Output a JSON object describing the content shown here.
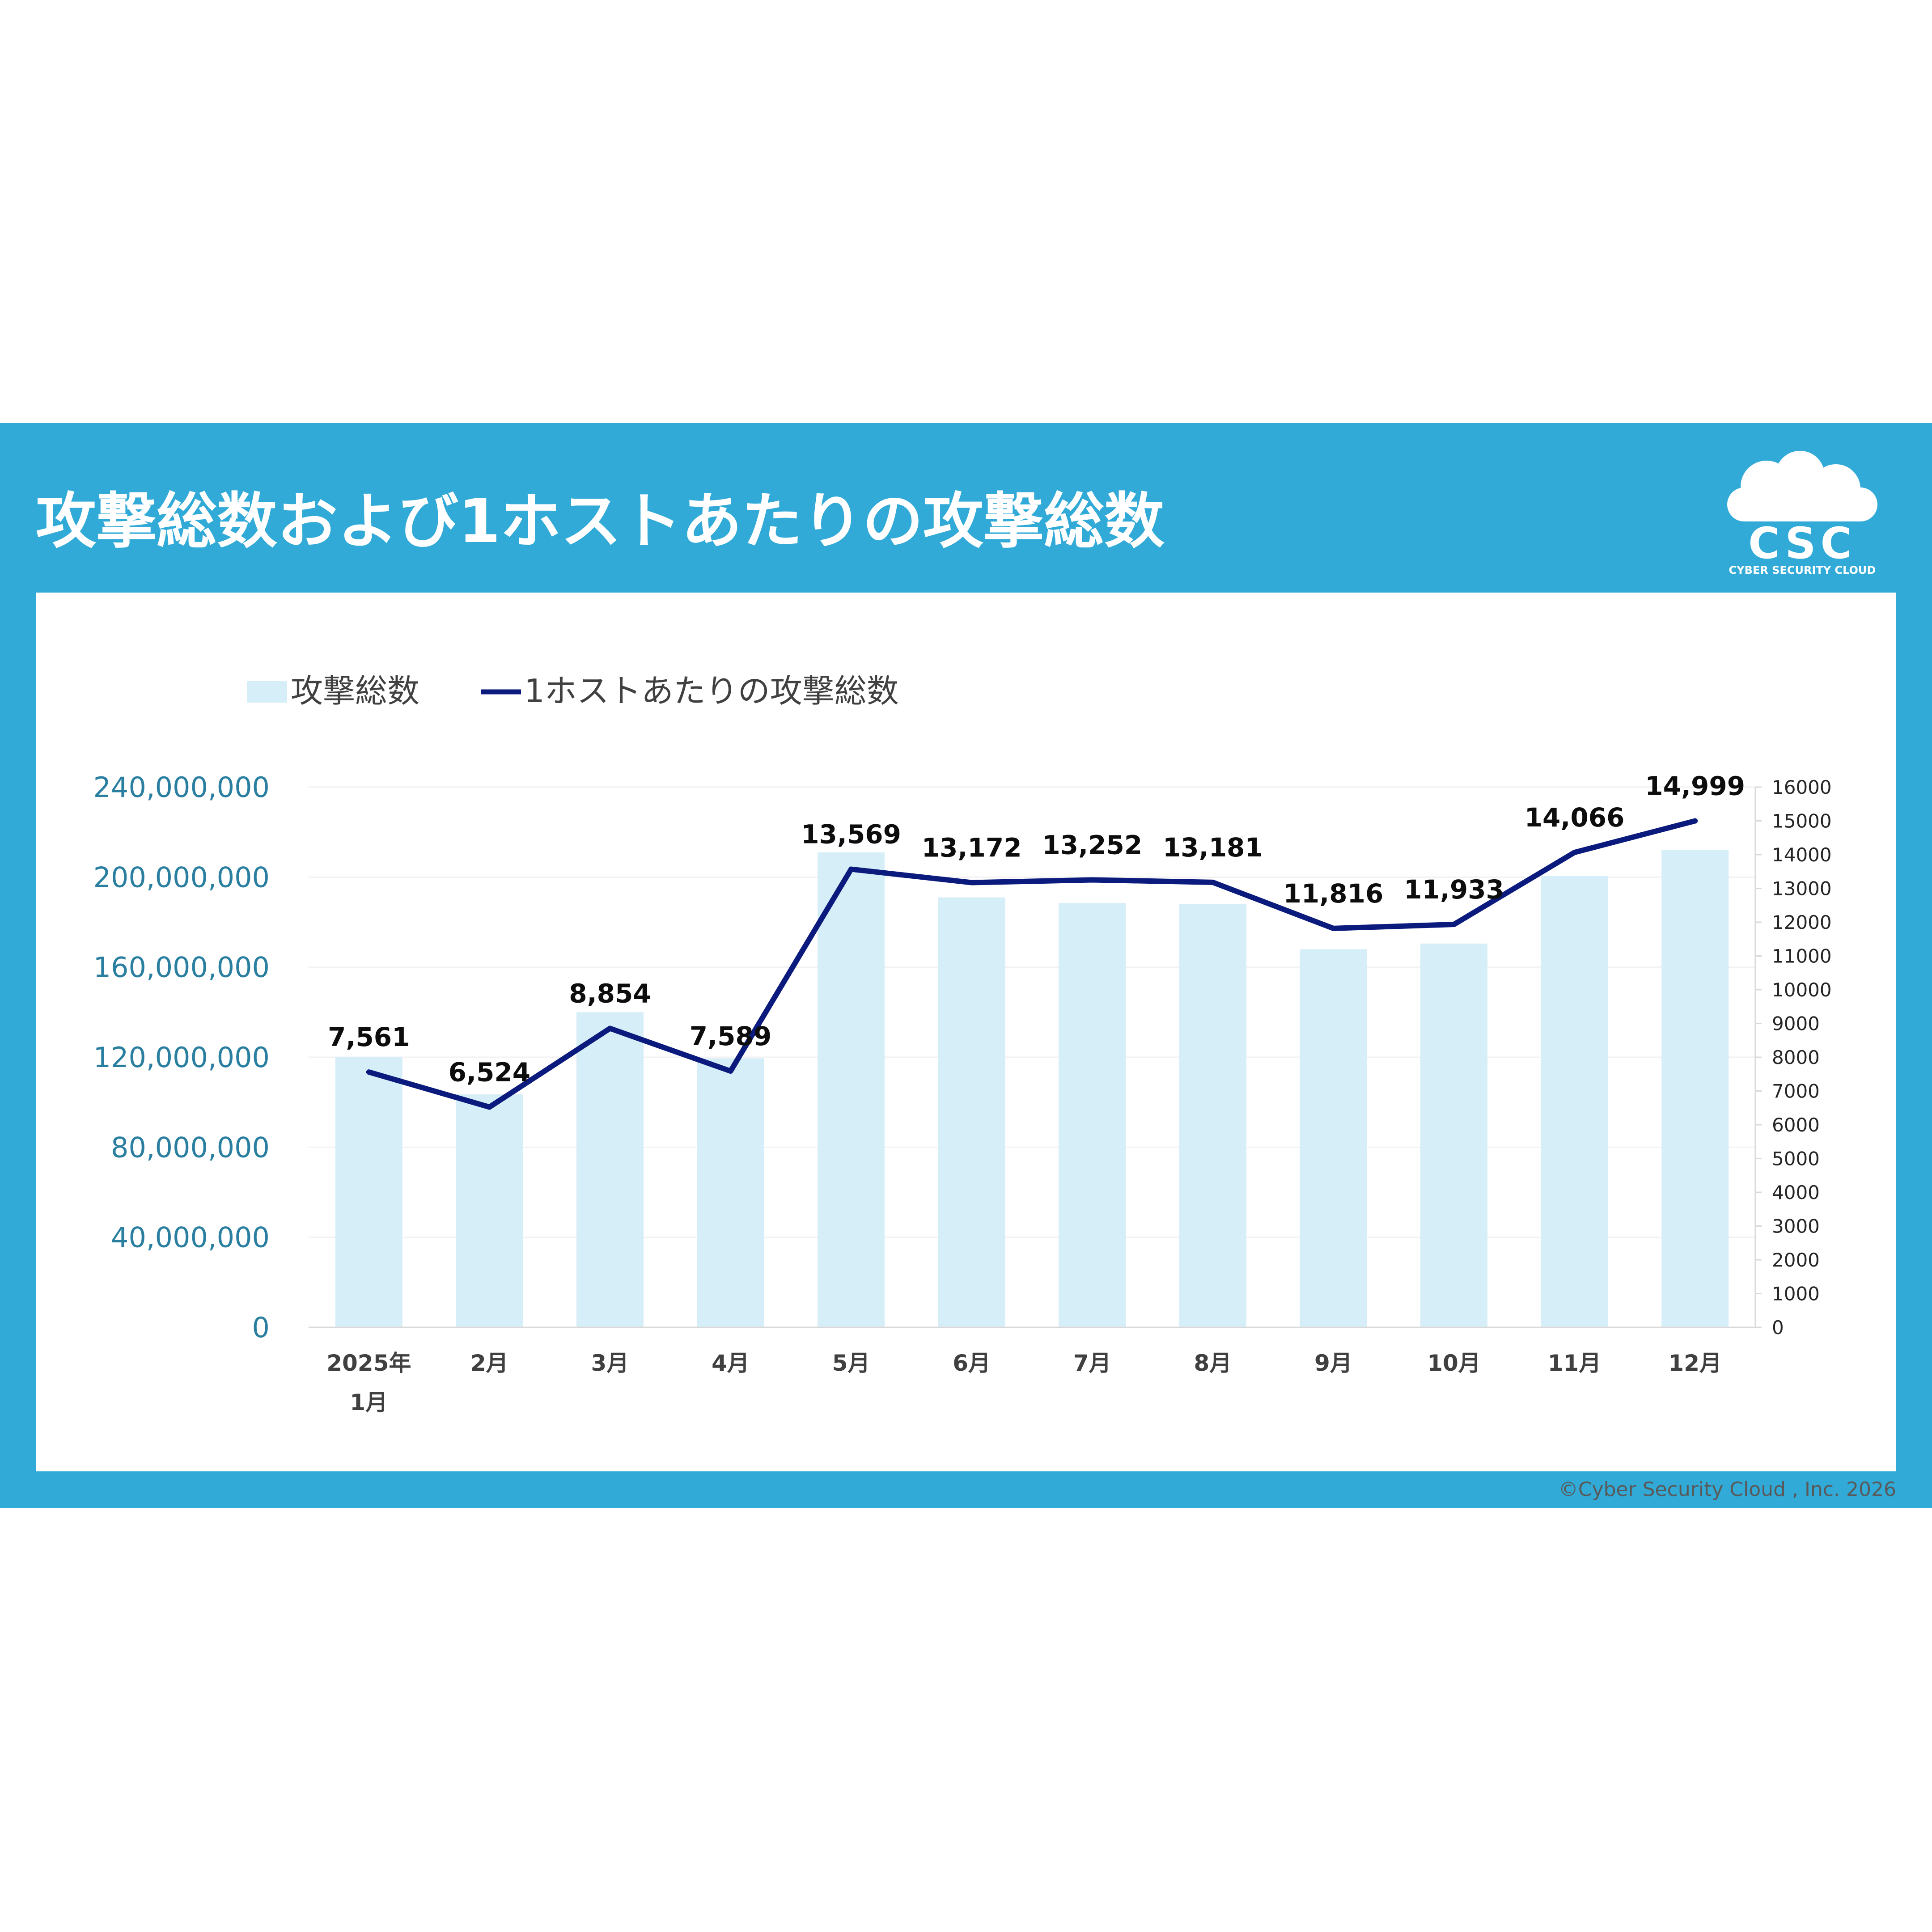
{
  "page": {
    "title": "攻撃総数および1ホストあたりの攻撃総数",
    "copyright": "©Cyber Security Cloud , Inc. 2026",
    "logo": {
      "mark": "CSC",
      "tagline": "CYBER SECURITY CLOUD"
    }
  },
  "colors": {
    "band": "#31aad7",
    "bar": "#d6eef8",
    "line": "#0b1a7d",
    "left_axis_text": "#2a7fa0",
    "right_axis_text": "#262626",
    "category_text": "#404040",
    "data_label": "#0d0d0d",
    "legend_text": "#404040"
  },
  "chart_data": {
    "type": "bar",
    "categories": [
      "2025年\n1月",
      "2月",
      "3月",
      "4月",
      "5月",
      "6月",
      "7月",
      "8月",
      "9月",
      "10月",
      "11月",
      "12月"
    ],
    "series": [
      {
        "name": "攻撃総数",
        "type": "bar",
        "axis": "left",
        "values": [
          120000000,
          103500000,
          140000000,
          119500000,
          211000000,
          191000000,
          188500000,
          188000000,
          168000000,
          170500000,
          200500000,
          212000000
        ]
      },
      {
        "name": "1ホストあたりの攻撃総数",
        "type": "line",
        "axis": "right",
        "values": [
          7561,
          6524,
          8854,
          7589,
          13569,
          13172,
          13252,
          13181,
          11816,
          11933,
          14066,
          14999
        ],
        "labels": [
          "7,561",
          "6,524",
          "8,854",
          "7,589",
          "13,569",
          "13,172",
          "13,252",
          "13,181",
          "11,816",
          "11,933",
          "14,066",
          "14,999"
        ]
      }
    ],
    "y_left": {
      "lim": [
        0,
        240000000
      ],
      "ticks": [
        0,
        40000000,
        80000000,
        120000000,
        160000000,
        200000000,
        240000000
      ],
      "tick_labels": [
        "0",
        "40,000,000",
        "80,000,000",
        "120,000,000",
        "160,000,000",
        "200,000,000",
        "240,000,000"
      ]
    },
    "y_right": {
      "lim": [
        0,
        16000
      ],
      "ticks": [
        0,
        1000,
        2000,
        3000,
        4000,
        5000,
        6000,
        7000,
        8000,
        9000,
        10000,
        11000,
        12000,
        13000,
        14000,
        15000,
        16000
      ],
      "tick_labels": [
        "0",
        "1000",
        "2000",
        "3000",
        "4000",
        "5000",
        "6000",
        "7000",
        "8000",
        "9000",
        "10000",
        "11000",
        "12000",
        "13000",
        "14000",
        "15000",
        "16000"
      ]
    },
    "grid": true,
    "legend": "top-left"
  }
}
